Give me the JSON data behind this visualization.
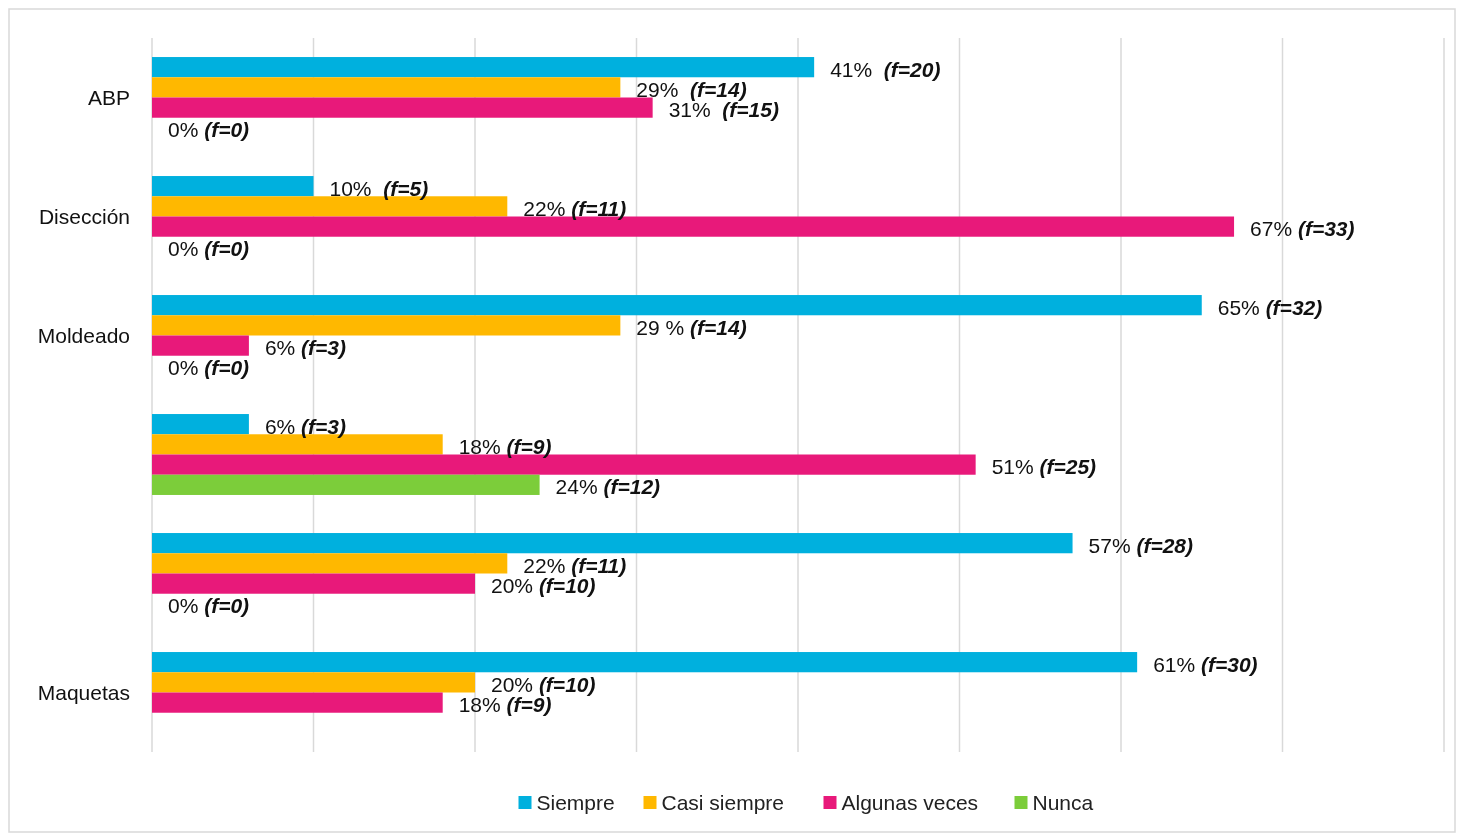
{
  "chart_data": {
    "type": "bar",
    "orientation": "horizontal",
    "categories": [
      "ABP",
      "Disección",
      "Moldeado",
      null,
      null,
      "Maquetas"
    ],
    "series": [
      {
        "name": "Siempre",
        "color": "#00b0de",
        "values": [
          41,
          10,
          65,
          6,
          57,
          61
        ],
        "value_labels": [
          "41%  (f=20)",
          "10%  (f=5)",
          "65% (f=32)",
          "6% (f=3)",
          "57% (f=28)",
          "61% (f=30)"
        ]
      },
      {
        "name": "Casi siempre",
        "color": "#ffb800",
        "values": [
          29,
          22,
          29,
          18,
          22,
          20
        ],
        "value_labels": [
          "29%  (f=14)",
          "22% (f=11)",
          "29 % (f=14)",
          "18% (f=9)",
          "22% (f=11)",
          "20% (f=10)"
        ]
      },
      {
        "name": "Algunas veces",
        "color": "#e8197a",
        "values": [
          31,
          67,
          6,
          51,
          20,
          18
        ],
        "value_labels": [
          "31%  (f=15)",
          "67% (f=33)",
          "6% (f=3)",
          "51% (f=25)",
          "20% (f=10)",
          "18% (f=9)"
        ]
      },
      {
        "name": "Nunca",
        "color": "#7ccd3a",
        "values": [
          0,
          0,
          0,
          24,
          0,
          null
        ],
        "value_labels": [
          "0% (f=0)",
          "0% (f=0)",
          "0% (f=0)",
          "24% (f=12)",
          "0% (f=0)",
          null
        ]
      }
    ],
    "xlim": [
      0,
      80
    ],
    "xticks": [
      {
        "value": 0,
        "label": null
      },
      {
        "value": 10,
        "label": null
      },
      {
        "value": 20,
        "label": null
      },
      {
        "value": 30,
        "label": null
      },
      {
        "value": 40,
        "label": null
      },
      {
        "value": 50,
        "label": null
      },
      {
        "value": 60,
        "label": null
      },
      {
        "value": 70,
        "label": null
      },
      {
        "value": 80,
        "label": null
      }
    ],
    "tick_labels": "y",
    "grid": "x",
    "legend": "bottom"
  }
}
